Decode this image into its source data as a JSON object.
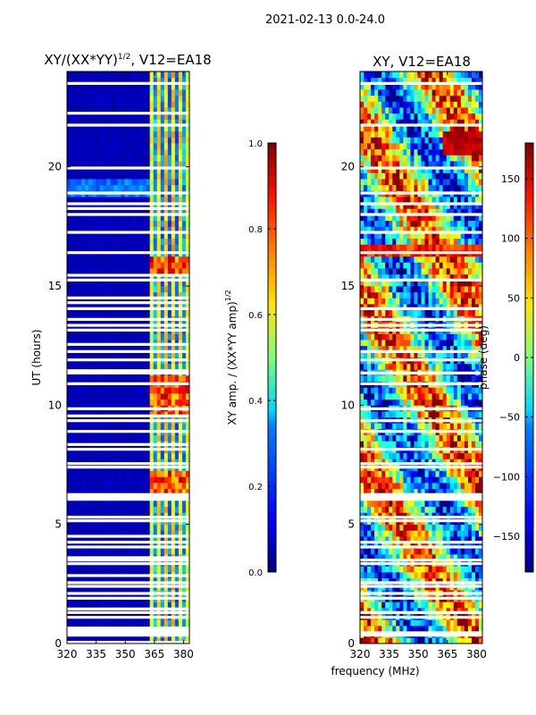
{
  "suptitle": "2021-02-13 0.0-24.0",
  "chart_data": [
    {
      "type": "heatmap",
      "title": "XY/(XX*YY)",
      "title_sup": "1/2",
      "title_suffix": ", V12=EA18",
      "xlabel": "",
      "ylabel": "UT (hours)",
      "xlim": [
        320,
        383
      ],
      "ylim": [
        0,
        24
      ],
      "xticks": [
        320,
        335,
        350,
        365,
        380
      ],
      "yticks": [
        0,
        5,
        10,
        15,
        20
      ],
      "colormap": "jet",
      "colorbar": {
        "label": "XY amp. / (XX*YY amp)",
        "label_sup": "1/2",
        "range": [
          0.0,
          1.0
        ],
        "ticks": [
          "0.0",
          "0.2",
          "0.4",
          "0.6",
          "0.8",
          "1.0"
        ]
      },
      "flagged_gaps_hours": [
        0.05,
        0.35,
        0.45,
        0.55,
        0.65,
        1.1,
        1.3,
        1.45,
        1.9,
        2.1,
        2.4,
        2.55,
        2.85,
        3.35,
        3.5,
        3.6,
        4.05,
        4.25,
        4.5,
        5.15,
        5.3,
        6.05,
        6.15,
        6.25,
        7.4,
        7.55,
        8.15,
        8.35,
        8.9,
        9.35,
        9.55,
        9.85,
        10.9,
        11.35,
        11.45,
        11.9,
        12.25,
        12.55,
        13.15,
        13.35,
        13.6,
        14.05,
        14.3,
        14.5,
        15.25,
        15.45,
        16.4,
        17.25,
        18.0,
        18.25,
        18.45,
        18.9,
        19.95,
        21.75,
        22.25,
        23.5
      ]
    },
    {
      "type": "heatmap",
      "title": "XY, V12=EA18",
      "xlabel": "frequency (MHz)",
      "ylabel": "",
      "xlim": [
        320,
        383
      ],
      "ylim": [
        0,
        24
      ],
      "xticks": [
        320,
        335,
        350,
        365,
        380
      ],
      "yticks": [
        0,
        5,
        10,
        15,
        20
      ],
      "colormap": "jet",
      "colorbar": {
        "label": "phase (deg)",
        "range": [
          -180,
          180
        ],
        "ticks": [
          "−150",
          "−100",
          "−50",
          "0",
          "50",
          "100",
          "150"
        ],
        "tick_values": [
          -150,
          -100,
          -50,
          0,
          50,
          100,
          150
        ]
      },
      "flagged_gaps_hours": [
        0.35,
        0.45,
        1.1,
        1.3,
        1.9,
        2.1,
        2.4,
        2.55,
        3.35,
        3.5,
        4.05,
        4.25,
        5.15,
        5.3,
        6.05,
        6.15,
        6.25,
        7.4,
        7.55,
        8.15,
        8.9,
        9.35,
        9.85,
        10.9,
        11.35,
        11.9,
        12.25,
        13.15,
        13.35,
        13.6,
        14.05,
        15.25,
        16.4,
        17.25,
        18.0,
        18.45,
        18.9,
        19.95,
        21.75,
        23.5
      ]
    }
  ]
}
